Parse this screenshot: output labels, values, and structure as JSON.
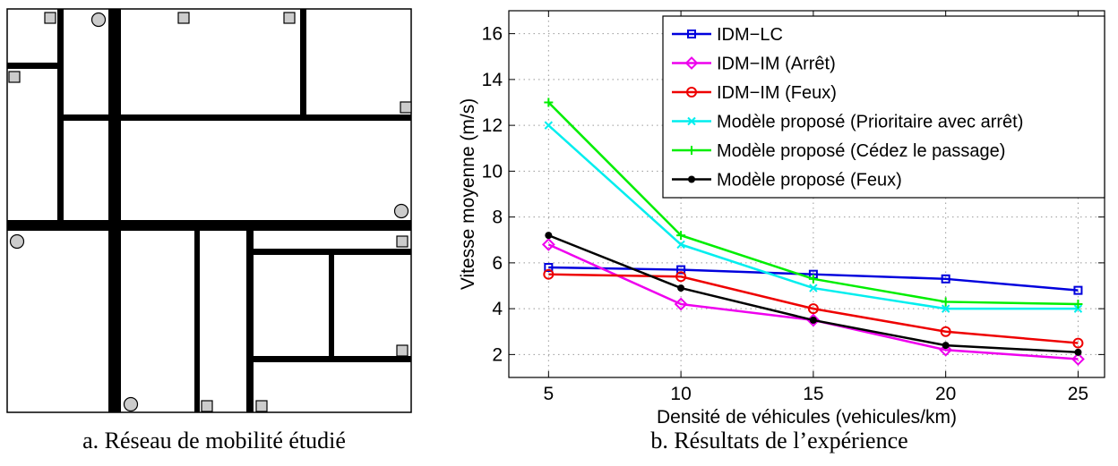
{
  "captions": {
    "a": "a. Réseau de mobilité étudié",
    "b": "b. Résultats de l’expérience"
  },
  "map_legend": {
    "square_marker": "square-node-icon",
    "circle_marker": "circle-node-icon"
  },
  "chart_data": {
    "type": "line",
    "xlabel": "Densité de véhicules (vehicules/km)",
    "ylabel": "Vitesse moyenne (m/s)",
    "x": [
      5,
      10,
      15,
      20,
      25
    ],
    "xlim": [
      3.5,
      26
    ],
    "ylim": [
      1,
      17
    ],
    "xticks": [
      5,
      10,
      15,
      20,
      25
    ],
    "yticks": [
      2,
      4,
      6,
      8,
      10,
      12,
      14,
      16
    ],
    "grid": true,
    "legend_position": "top-right",
    "series": [
      {
        "name": "IDM−LC",
        "values": [
          5.8,
          5.7,
          5.5,
          5.3,
          4.8
        ],
        "color": "#0000dd",
        "marker": "square"
      },
      {
        "name": "IDM−IM (Arrêt)",
        "values": [
          6.8,
          4.2,
          3.5,
          2.2,
          1.8
        ],
        "color": "#ee00ee",
        "marker": "diamond"
      },
      {
        "name": "IDM−IM (Feux)",
        "values": [
          5.5,
          5.4,
          4.0,
          3.0,
          2.5
        ],
        "color": "#ee0000",
        "marker": "circle"
      },
      {
        "name": "Modèle proposé (Prioritaire avec arrêt)",
        "values": [
          12.0,
          6.8,
          4.9,
          4.0,
          4.0
        ],
        "color": "#00eeee",
        "marker": "x"
      },
      {
        "name": "Modèle proposé (Cédez le passage)",
        "values": [
          13.0,
          7.2,
          5.3,
          4.3,
          4.2
        ],
        "color": "#00ee00",
        "marker": "plus"
      },
      {
        "name": "Modèle proposé (Feux)",
        "values": [
          7.2,
          4.9,
          3.5,
          2.4,
          2.1
        ],
        "color": "#000000",
        "marker": "dot"
      }
    ]
  }
}
